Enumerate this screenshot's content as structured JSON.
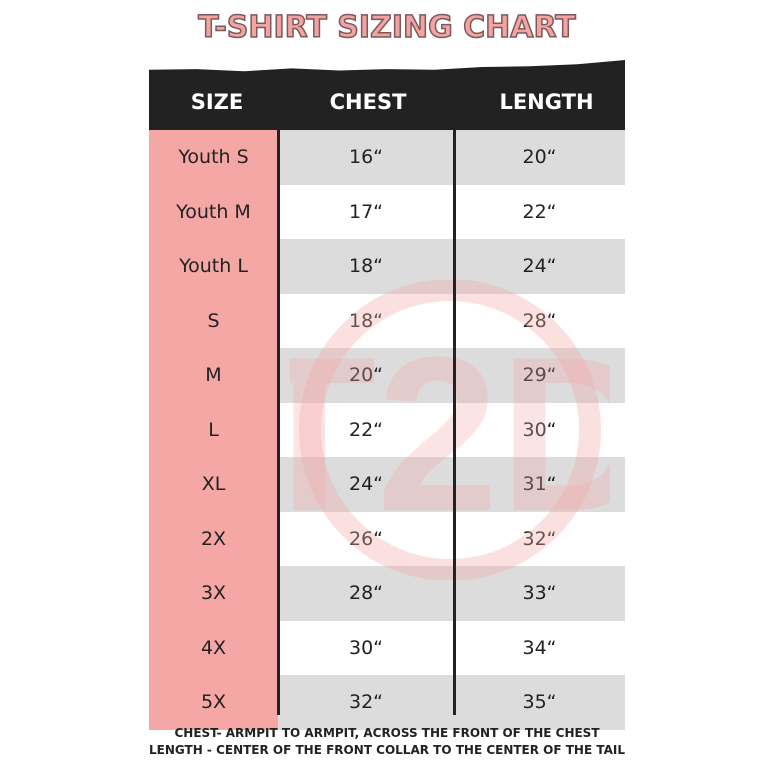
{
  "title": "T-SHIRT SIZING CHART",
  "colors": {
    "size_column": "#f4a7a5",
    "header": "#222222",
    "stripe": "#dcdcdc",
    "title": "#f3a3a1"
  },
  "watermark": {
    "icon": "t2d-logo-watermark"
  },
  "headers": {
    "size": "SIZE",
    "chest": "CHEST",
    "length": "LENGTH"
  },
  "rows": [
    {
      "size": "Youth S",
      "chest": "16“",
      "length": "20“"
    },
    {
      "size": "Youth M",
      "chest": "17“",
      "length": "22“"
    },
    {
      "size": "Youth L",
      "chest": "18“",
      "length": "24“"
    },
    {
      "size": "S",
      "chest": "18“",
      "length": "28“"
    },
    {
      "size": "M",
      "chest": "20“",
      "length": "29“"
    },
    {
      "size": "L",
      "chest": "22“",
      "length": "30“"
    },
    {
      "size": "XL",
      "chest": "24“",
      "length": "31“"
    },
    {
      "size": "2X",
      "chest": "26“",
      "length": "32“"
    },
    {
      "size": "3X",
      "chest": "28“",
      "length": "33“"
    },
    {
      "size": "4X",
      "chest": "30“",
      "length": "34“"
    },
    {
      "size": "5X",
      "chest": "32“",
      "length": "35“"
    }
  ],
  "notes": [
    "CHEST- ARMPIT TO ARMPIT, ACROSS THE FRONT OF THE CHEST",
    "LENGTH - CENTER OF THE FRONT COLLAR TO THE CENTER OF THE TAIL"
  ]
}
